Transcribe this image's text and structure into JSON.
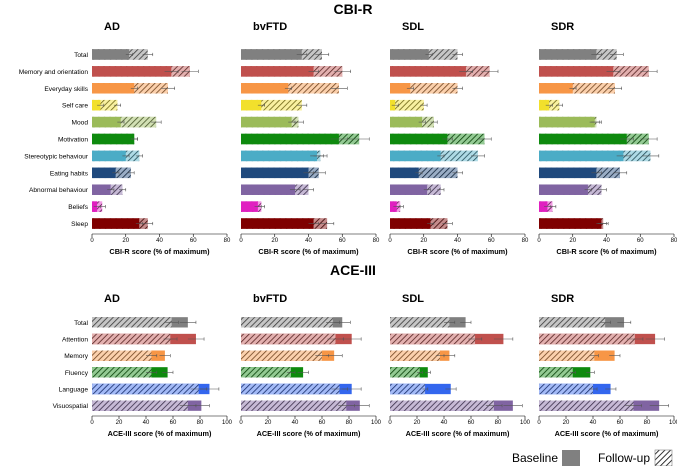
{
  "figure": {
    "sections": [
      {
        "title": "CBI-R",
        "xlabel": "CBI-R score (% of maximum)",
        "xlim": [
          0,
          80
        ],
        "ticks": [
          0,
          20,
          40,
          60,
          80
        ],
        "categories": [
          "Total",
          "Memory and orientation",
          "Everyday skills",
          "Self care",
          "Mood",
          "Motivation",
          "Stereotypic behaviour",
          "Eating habits",
          "Abnormal behaviour",
          "Beliefs",
          "Sleep"
        ],
        "colors": [
          "#808080",
          "#c0504d",
          "#f79646",
          "#f2e02c",
          "#9bbb59",
          "#0e8a0e",
          "#4bacc6",
          "#1f497d",
          "#8064a2",
          "#e020c0",
          "#7f0000"
        ]
      },
      {
        "title": "ACE-III",
        "xlabel": "ACE-III score (% of maximum)",
        "xlim": [
          0,
          100
        ],
        "ticks": [
          0,
          20,
          40,
          60,
          80,
          100
        ],
        "categories": [
          "Total",
          "Attention",
          "Memory",
          "Fluency",
          "Language",
          "Visuospatial"
        ],
        "colors": [
          "#808080",
          "#c0504d",
          "#f79646",
          "#0e8a0e",
          "#3366ee",
          "#8064a2"
        ]
      }
    ],
    "legend": {
      "baseline_label": "Baseline",
      "followup_label": "Follow-up"
    }
  },
  "chart_data": [
    {
      "type": "bar",
      "section": "CBI-R",
      "title": "AD",
      "xlabel": "CBI-R score (% of maximum)",
      "xlim": [
        0,
        80
      ],
      "categories": [
        "Total",
        "Memory and orientation",
        "Everyday skills",
        "Self care",
        "Mood",
        "Motivation",
        "Stereotypic behaviour",
        "Eating habits",
        "Abnormal behaviour",
        "Beliefs",
        "Sleep"
      ],
      "series": [
        {
          "name": "Baseline",
          "values": [
            22,
            47,
            25,
            5,
            17,
            25,
            20,
            14,
            11,
            3,
            28
          ]
        },
        {
          "name": "Follow-up",
          "values": [
            33,
            58,
            45,
            15,
            38,
            25,
            28,
            23,
            18,
            6,
            33
          ]
        }
      ]
    },
    {
      "type": "bar",
      "section": "CBI-R",
      "title": "bvFTD",
      "xlabel": "CBI-R score (% of maximum)",
      "xlim": [
        0,
        80
      ],
      "categories": [
        "Total",
        "Memory and orientation",
        "Everyday skills",
        "Self care",
        "Mood",
        "Motivation",
        "Stereotypic behaviour",
        "Eating habits",
        "Abnormal behaviour",
        "Beliefs",
        "Sleep"
      ],
      "series": [
        {
          "name": "Baseline",
          "values": [
            36,
            43,
            28,
            12,
            30,
            58,
            45,
            40,
            32,
            10,
            43
          ]
        },
        {
          "name": "Follow-up",
          "values": [
            48,
            60,
            58,
            36,
            34,
            70,
            47,
            46,
            40,
            12,
            51
          ]
        }
      ]
    },
    {
      "type": "bar",
      "section": "CBI-R",
      "title": "SDL",
      "xlabel": "CBI-R score (% of maximum)",
      "xlim": [
        0,
        80
      ],
      "categories": [
        "Total",
        "Memory and orientation",
        "Everyday skills",
        "Self care",
        "Mood",
        "Motivation",
        "Stereotypic behaviour",
        "Eating habits",
        "Abnormal behaviour",
        "Beliefs",
        "Sleep"
      ],
      "series": [
        {
          "name": "Baseline",
          "values": [
            23,
            45,
            12,
            3,
            19,
            34,
            30,
            17,
            22,
            4,
            24
          ]
        },
        {
          "name": "Follow-up",
          "values": [
            40,
            59,
            40,
            20,
            26,
            56,
            52,
            40,
            30,
            6,
            34
          ]
        }
      ]
    },
    {
      "type": "bar",
      "section": "CBI-R",
      "title": "SDR",
      "xlabel": "CBI-R score (% of maximum)",
      "xlim": [
        0,
        80
      ],
      "categories": [
        "Total",
        "Memory and orientation",
        "Everyday skills",
        "Self care",
        "Mood",
        "Motivation",
        "Stereotypic behaviour",
        "Eating habits",
        "Abnormal behaviour",
        "Beliefs",
        "Sleep"
      ],
      "series": [
        {
          "name": "Baseline",
          "values": [
            34,
            44,
            20,
            6,
            33,
            52,
            50,
            34,
            29,
            5,
            37
          ]
        },
        {
          "name": "Follow-up",
          "values": [
            46,
            65,
            45,
            12,
            34,
            65,
            66,
            48,
            37,
            8,
            38
          ]
        }
      ]
    },
    {
      "type": "bar",
      "section": "ACE-III",
      "title": "AD",
      "xlabel": "ACE-III score (% of maximum)",
      "xlim": [
        0,
        100
      ],
      "categories": [
        "Total",
        "Attention",
        "Memory",
        "Fluency",
        "Language",
        "Visuospatial"
      ],
      "series": [
        {
          "name": "Baseline",
          "values": [
            71,
            77,
            54,
            56,
            87,
            81
          ]
        },
        {
          "name": "Follow-up",
          "values": [
            59,
            58,
            44,
            44,
            79,
            71
          ]
        }
      ]
    },
    {
      "type": "bar",
      "section": "ACE-III",
      "title": "bvFTD",
      "xlabel": "ACE-III score (% of maximum)",
      "xlim": [
        0,
        100
      ],
      "categories": [
        "Total",
        "Attention",
        "Memory",
        "Fluency",
        "Language",
        "Visuospatial"
      ],
      "series": [
        {
          "name": "Baseline",
          "values": [
            75,
            82,
            69,
            46,
            82,
            88
          ]
        },
        {
          "name": "Follow-up",
          "values": [
            68,
            70,
            60,
            37,
            73,
            78
          ]
        }
      ]
    },
    {
      "type": "bar",
      "section": "ACE-III",
      "title": "SDL",
      "xlabel": "ACE-III score (% of maximum)",
      "xlim": [
        0,
        100
      ],
      "categories": [
        "Total",
        "Attention",
        "Memory",
        "Fluency",
        "Language",
        "Visuospatial"
      ],
      "series": [
        {
          "name": "Baseline",
          "values": [
            56,
            84,
            44,
            28,
            45,
            91
          ]
        },
        {
          "name": "Follow-up",
          "values": [
            44,
            63,
            37,
            22,
            26,
            77
          ]
        }
      ]
    },
    {
      "type": "bar",
      "section": "ACE-III",
      "title": "SDR",
      "xlabel": "ACE-III score (% of maximum)",
      "xlim": [
        0,
        100
      ],
      "categories": [
        "Total",
        "Attention",
        "Memory",
        "Fluency",
        "Language",
        "Visuospatial"
      ],
      "series": [
        {
          "name": "Baseline",
          "values": [
            63,
            86,
            56,
            38,
            53,
            89
          ]
        },
        {
          "name": "Follow-up",
          "values": [
            49,
            71,
            41,
            25,
            40,
            70
          ]
        }
      ]
    }
  ]
}
